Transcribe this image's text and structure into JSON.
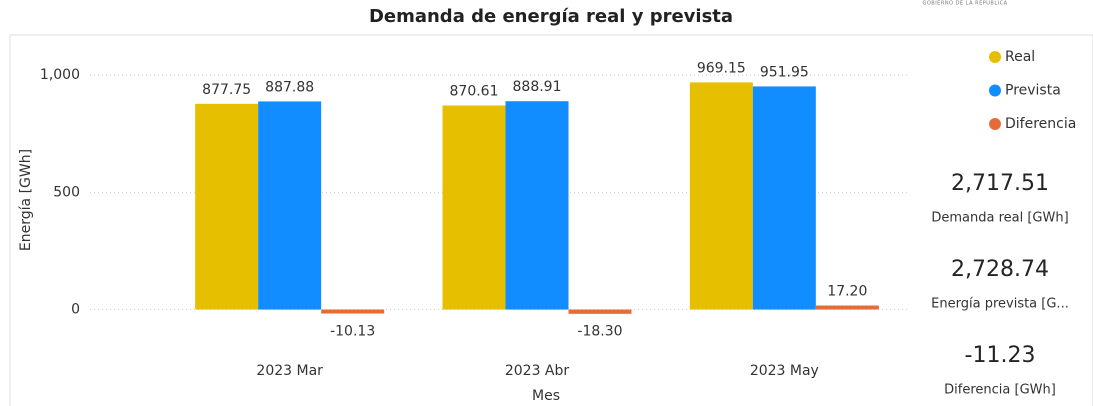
{
  "chart_data": {
    "type": "bar",
    "title": "Demanda de energía real y prevista",
    "header_note": "GOBIERNO DE LA REPUBLICA",
    "x_label": "Mes",
    "y_label": "Energía [GWh]",
    "categories": [
      "2023 Mar",
      "2023 Abr",
      "2023 May"
    ],
    "series": [
      {
        "name": "Real",
        "color": "#e6c000",
        "values": [
          877.75,
          870.61,
          969.15
        ],
        "value_labels": [
          "877.75",
          "870.61",
          "969.15"
        ]
      },
      {
        "name": "Prevista",
        "color": "#118dff",
        "values": [
          887.88,
          888.91,
          951.95
        ],
        "value_labels": [
          "887.88",
          "888.91",
          "951.95"
        ]
      },
      {
        "name": "Diferencia",
        "color": "#e66c37",
        "values": [
          -10.13,
          -18.3,
          17.2
        ],
        "value_labels": [
          "-10.13",
          "-18.30",
          "17.20"
        ]
      }
    ],
    "ylim": [
      -130,
      1150
    ],
    "yticks": [
      0,
      500,
      {
        "value": 1000,
        "label": "1,000"
      }
    ],
    "grid": true,
    "legend_position": "top-right",
    "kpis": [
      {
        "value": 2717.51,
        "value_label": "2,717.51",
        "caption": "Demanda real [GWh]"
      },
      {
        "value": 2728.74,
        "value_label": "2,728.74",
        "caption": "Energía prevista [G..."
      },
      {
        "value": -11.23,
        "value_label": "-11.23",
        "caption": "Diferencia [GWh]"
      }
    ]
  }
}
